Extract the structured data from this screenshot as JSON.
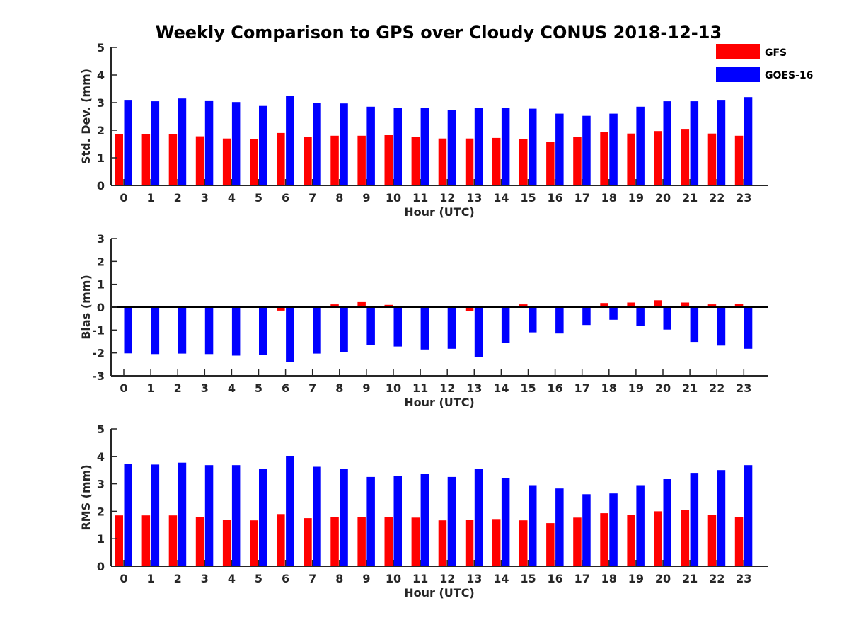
{
  "figure": {
    "title": "Weekly Comparison to GPS over Cloudy CONUS 2018-12-13",
    "colors": {
      "GFS": "#ff0000",
      "GOES-16": "#0000ff",
      "axis": "#262626",
      "zero_line": "#000000"
    }
  },
  "legend": {
    "placement": "top-right",
    "entries": [
      {
        "label": "GFS",
        "color": "#ff0000"
      },
      {
        "label": "GOES-16",
        "color": "#0000ff"
      }
    ]
  },
  "chart_data": [
    {
      "type": "bar",
      "xlabel": "Hour (UTC)",
      "ylabel": "Std. Dev. (mm)",
      "ylim": [
        0,
        5
      ],
      "yticks": [
        0,
        1,
        2,
        3,
        4,
        5
      ],
      "categories": [
        "0",
        "1",
        "2",
        "3",
        "4",
        "5",
        "6",
        "7",
        "8",
        "9",
        "10",
        "11",
        "12",
        "13",
        "14",
        "15",
        "16",
        "17",
        "18",
        "19",
        "20",
        "21",
        "22",
        "23"
      ],
      "series": [
        {
          "name": "GFS",
          "color": "#ff0000",
          "values": [
            1.85,
            1.85,
            1.85,
            1.78,
            1.7,
            1.67,
            1.9,
            1.75,
            1.8,
            1.8,
            1.82,
            1.77,
            1.7,
            1.7,
            1.72,
            1.67,
            1.57,
            1.77,
            1.93,
            1.88,
            1.97,
            2.05,
            1.88,
            1.8
          ]
        },
        {
          "name": "GOES-16",
          "color": "#0000ff",
          "values": [
            3.1,
            3.05,
            3.15,
            3.08,
            3.02,
            2.88,
            3.25,
            3.0,
            2.97,
            2.85,
            2.82,
            2.8,
            2.72,
            2.82,
            2.82,
            2.78,
            2.6,
            2.52,
            2.6,
            2.85,
            3.05,
            3.05,
            3.1,
            3.2
          ]
        }
      ]
    },
    {
      "type": "bar",
      "xlabel": "Hour (UTC)",
      "ylabel": "Bias (mm)",
      "ylim": [
        -3,
        3
      ],
      "yticks": [
        -3,
        -2,
        -1,
        0,
        1,
        2,
        3
      ],
      "categories": [
        "0",
        "1",
        "2",
        "3",
        "4",
        "5",
        "6",
        "7",
        "8",
        "9",
        "10",
        "11",
        "12",
        "13",
        "14",
        "15",
        "16",
        "17",
        "18",
        "19",
        "20",
        "21",
        "22",
        "23"
      ],
      "series": [
        {
          "name": "GFS",
          "color": "#ff0000",
          "values": [
            -0.02,
            -0.03,
            0.02,
            -0.02,
            0.02,
            -0.02,
            -0.15,
            0.02,
            0.12,
            0.25,
            0.1,
            0.0,
            0.0,
            -0.18,
            0.02,
            0.12,
            0.0,
            -0.03,
            0.18,
            0.2,
            0.3,
            0.2,
            0.12,
            0.15
          ]
        },
        {
          "name": "GOES-16",
          "color": "#0000ff",
          "values": [
            -2.02,
            -2.05,
            -2.03,
            -2.05,
            -2.12,
            -2.1,
            -2.38,
            -2.03,
            -1.97,
            -1.65,
            -1.72,
            -1.85,
            -1.82,
            -2.18,
            -1.57,
            -1.1,
            -1.15,
            -0.78,
            -0.55,
            -0.82,
            -0.98,
            -1.52,
            -1.68,
            -1.82
          ]
        }
      ]
    },
    {
      "type": "bar",
      "xlabel": "Hour (UTC)",
      "ylabel": "RMS (mm)",
      "ylim": [
        0,
        5
      ],
      "yticks": [
        0,
        1,
        2,
        3,
        4,
        5
      ],
      "categories": [
        "0",
        "1",
        "2",
        "3",
        "4",
        "5",
        "6",
        "7",
        "8",
        "9",
        "10",
        "11",
        "12",
        "13",
        "14",
        "15",
        "16",
        "17",
        "18",
        "19",
        "20",
        "21",
        "22",
        "23"
      ],
      "series": [
        {
          "name": "GFS",
          "color": "#ff0000",
          "values": [
            1.85,
            1.85,
            1.85,
            1.78,
            1.7,
            1.67,
            1.9,
            1.75,
            1.8,
            1.8,
            1.8,
            1.77,
            1.67,
            1.7,
            1.72,
            1.67,
            1.57,
            1.77,
            1.93,
            1.88,
            2.0,
            2.05,
            1.88,
            1.8
          ]
        },
        {
          "name": "GOES-16",
          "color": "#0000ff",
          "values": [
            3.72,
            3.7,
            3.77,
            3.68,
            3.68,
            3.55,
            4.02,
            3.62,
            3.55,
            3.25,
            3.3,
            3.35,
            3.25,
            3.55,
            3.2,
            2.95,
            2.83,
            2.62,
            2.65,
            2.95,
            3.17,
            3.4,
            3.5,
            3.68
          ]
        }
      ]
    }
  ]
}
